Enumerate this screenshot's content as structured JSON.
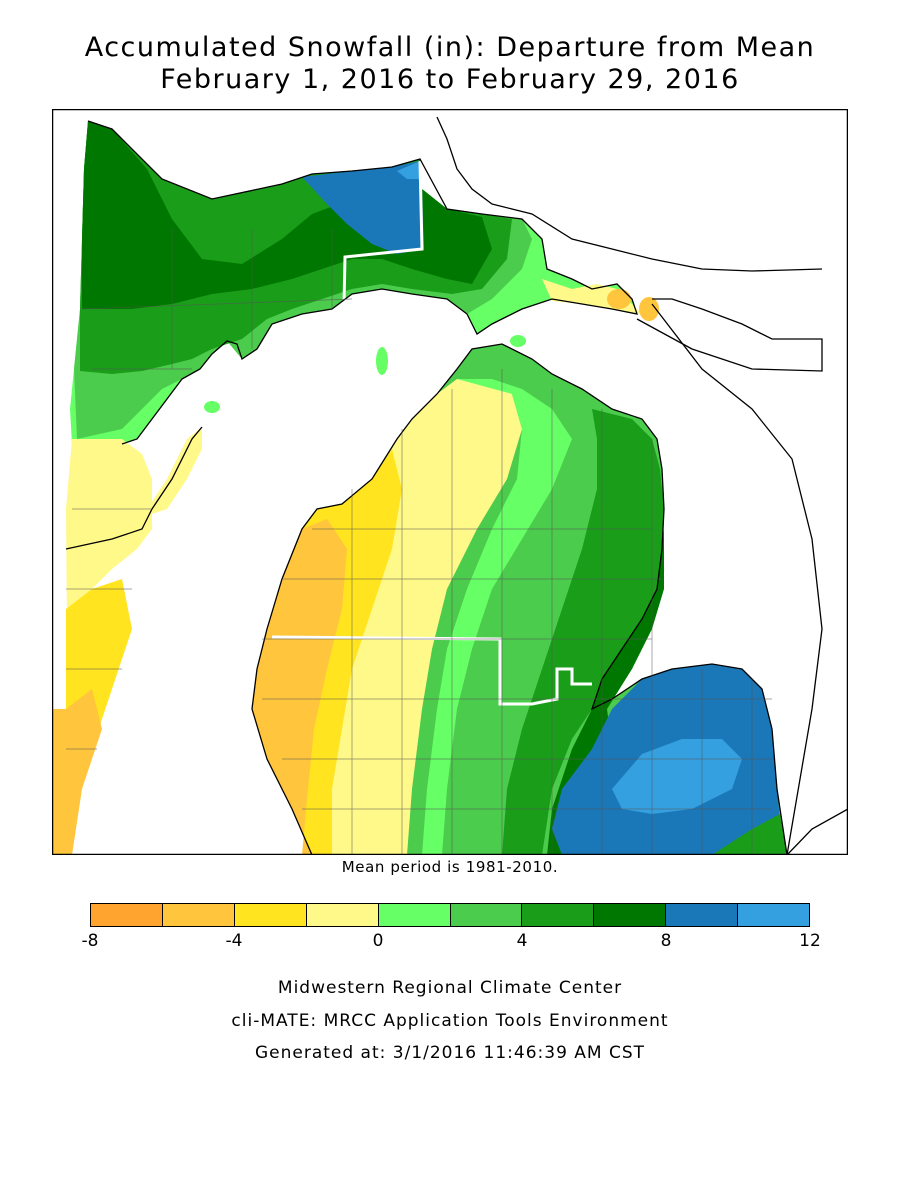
{
  "title": {
    "line1": "Accumulated Snowfall (in): Departure from Mean",
    "line2": "February 1, 2016 to February 29, 2016"
  },
  "note": "Mean period is 1981-2010.",
  "legend": {
    "colors": [
      "#ffa42e",
      "#ffc53d",
      "#ffe41f",
      "#fff98a",
      "#66ff66",
      "#4ccc4c",
      "#1a9e1a",
      "#007700",
      "#1a78b8",
      "#35a0e0"
    ],
    "ticks": [
      {
        "label": "-8",
        "value": -8
      },
      {
        "label": "-4",
        "value": -4
      },
      {
        "label": "0",
        "value": 0
      },
      {
        "label": "4",
        "value": 4
      },
      {
        "label": "8",
        "value": 8
      },
      {
        "label": "12",
        "value": 12
      }
    ],
    "min": -8,
    "max": 12
  },
  "credits": {
    "line1": "Midwestern Regional Climate Center",
    "line2": "cli-MATE: MRCC Application Tools Environment",
    "line3": "Generated at: 3/1/2016 11:46:39 AM CST"
  }
}
